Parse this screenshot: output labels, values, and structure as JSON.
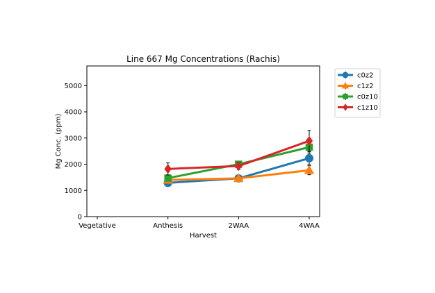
{
  "chart_data": {
    "type": "line",
    "title": "Line 667 Mg Concentrations (Rachis)",
    "xlabel": "Harvest",
    "ylabel": "Mg Conc. (ppm)",
    "categories": [
      "Vegetative",
      "Anthesis",
      "2WAA",
      "4WAA"
    ],
    "ylim": [
      0,
      5750
    ],
    "yticks": [
      0,
      1000,
      2000,
      3000,
      4000,
      5000
    ],
    "grid": false,
    "legend_position": "outside-upper-right",
    "series": [
      {
        "name": "c0z2",
        "color": "#1f77b4",
        "marker": "circle",
        "values": [
          null,
          1290,
          1460,
          2230
        ],
        "errors": [
          null,
          60,
          50,
          250
        ]
      },
      {
        "name": "c1z2",
        "color": "#ff7f0e",
        "marker": "triangle-up",
        "values": [
          null,
          1400,
          1460,
          1770
        ],
        "errors": [
          null,
          50,
          40,
          170
        ]
      },
      {
        "name": "c0z10",
        "color": "#2ca02c",
        "marker": "square",
        "values": [
          null,
          1470,
          2000,
          2650
        ],
        "errors": [
          null,
          80,
          100,
          220
        ]
      },
      {
        "name": "c1z10",
        "color": "#d62728",
        "marker": "diamond",
        "values": [
          null,
          1820,
          1930,
          2890
        ],
        "errors": [
          null,
          230,
          130,
          400
        ]
      }
    ]
  }
}
